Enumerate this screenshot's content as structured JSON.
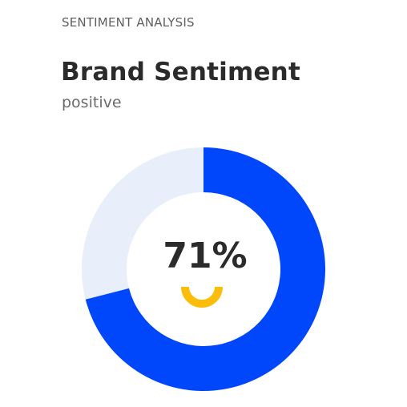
{
  "header": {
    "overline": "SENTIMENT ANALYSIS",
    "title": "Brand Sentiment",
    "subtitle": "positive"
  },
  "gauge": {
    "value_text": "71%",
    "value_fraction": 0.71,
    "colors": {
      "filled": "#0047fb",
      "track": "#e8effb",
      "indicator": "#fbbd0c"
    },
    "indicator_icon": "smile-icon"
  }
}
